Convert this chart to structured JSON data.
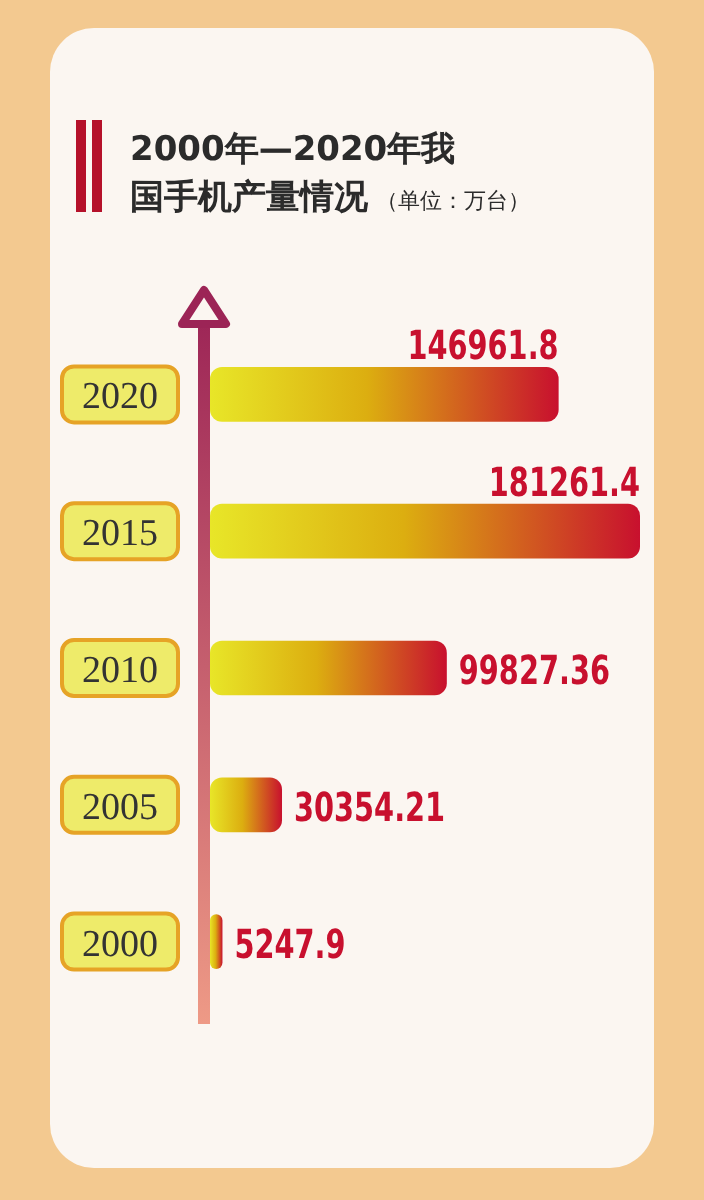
{
  "chart_data": {
    "type": "bar",
    "orientation": "horizontal",
    "title": "2000年—2020年我国手机产量情况",
    "subtitle": "（单位：万台）",
    "categories": [
      "2020",
      "2015",
      "2010",
      "2005",
      "2000"
    ],
    "values": [
      146961.8,
      181261.4,
      99827.36,
      30354.21,
      5247.9
    ],
    "color": "#c8102e",
    "data_labels": true
  }
}
